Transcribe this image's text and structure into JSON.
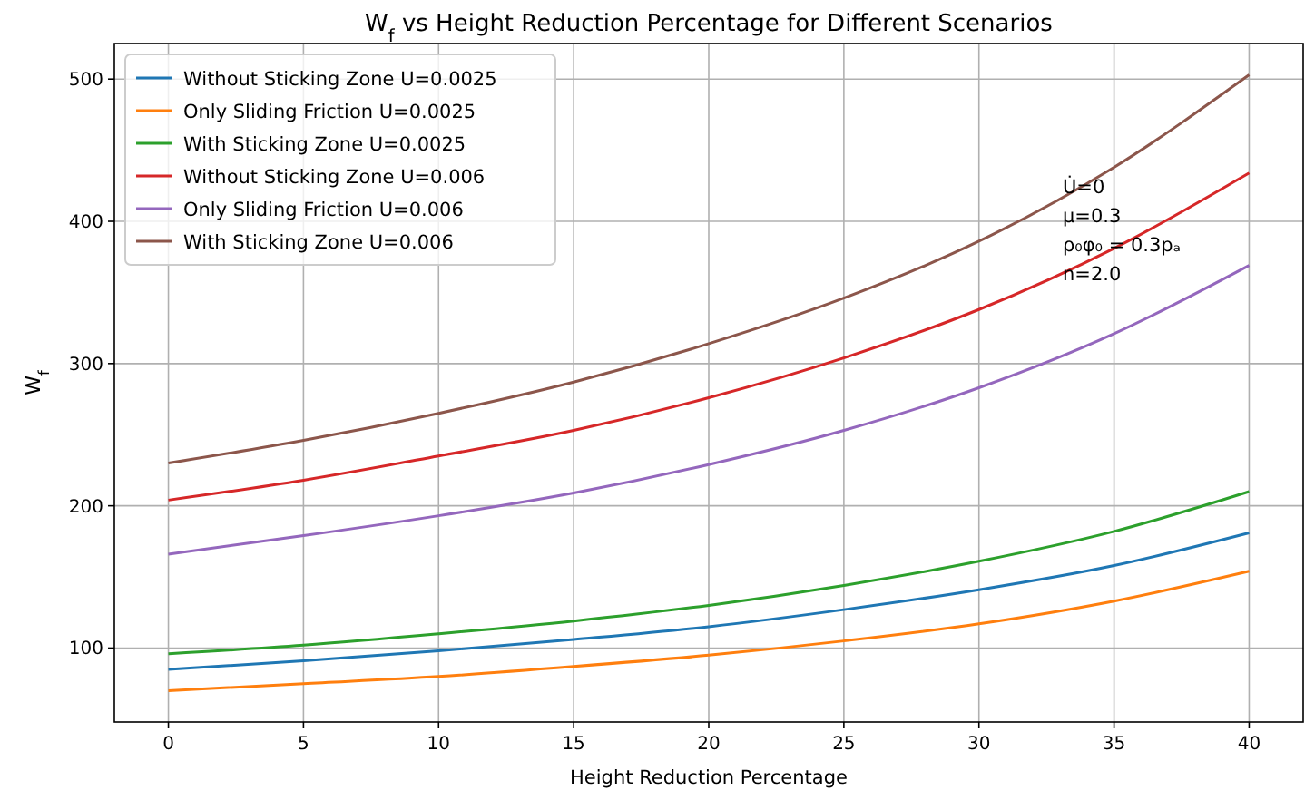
{
  "chart_data": {
    "type": "line",
    "title": "W$_{f}$ vs Height Reduction Percentage for Different Scenarios",
    "xlabel": "Height Reduction Percentage",
    "ylabel": "W$_{f}$",
    "x": [
      0,
      5,
      10,
      15,
      20,
      25,
      30,
      35,
      40
    ],
    "xlim": [
      -2,
      42
    ],
    "xticks": [
      0,
      5,
      10,
      15,
      20,
      25,
      30,
      35,
      40
    ],
    "ylim": [
      48,
      525
    ],
    "yticks": [
      100,
      200,
      300,
      400,
      500
    ],
    "grid": true,
    "legend": "top left",
    "line_style": "solid",
    "marker": "none",
    "annotations": [
      "U̇=0",
      "μ=0.3",
      "ρ₀φ₀ = 0.3pₐ",
      "n=2.0"
    ],
    "series": [
      {
        "name": "Without Sticking Zone U=0.0025",
        "color": "#1f77b4",
        "values": [
          85,
          91,
          98,
          106,
          115,
          127,
          141,
          158,
          181
        ]
      },
      {
        "name": "Only Sliding Friction U=0.0025",
        "color": "#ff7f0e",
        "values": [
          70,
          75,
          80,
          87,
          95,
          105,
          117,
          133,
          154
        ]
      },
      {
        "name": "With Sticking Zone U=0.0025",
        "color": "#2ca02c",
        "values": [
          96,
          102,
          110,
          119,
          130,
          144,
          161,
          182,
          210
        ]
      },
      {
        "name": "Without Sticking Zone U=0.006",
        "color": "#d62728",
        "values": [
          204,
          218,
          235,
          253,
          276,
          304,
          338,
          381,
          434
        ]
      },
      {
        "name": "Only Sliding Friction U=0.006",
        "color": "#9467bd",
        "values": [
          166,
          179,
          193,
          209,
          229,
          253,
          283,
          321,
          369
        ]
      },
      {
        "name": "With Sticking Zone U=0.006",
        "color": "#8c564b",
        "values": [
          230,
          246,
          265,
          287,
          314,
          346,
          386,
          438,
          503
        ]
      }
    ]
  }
}
